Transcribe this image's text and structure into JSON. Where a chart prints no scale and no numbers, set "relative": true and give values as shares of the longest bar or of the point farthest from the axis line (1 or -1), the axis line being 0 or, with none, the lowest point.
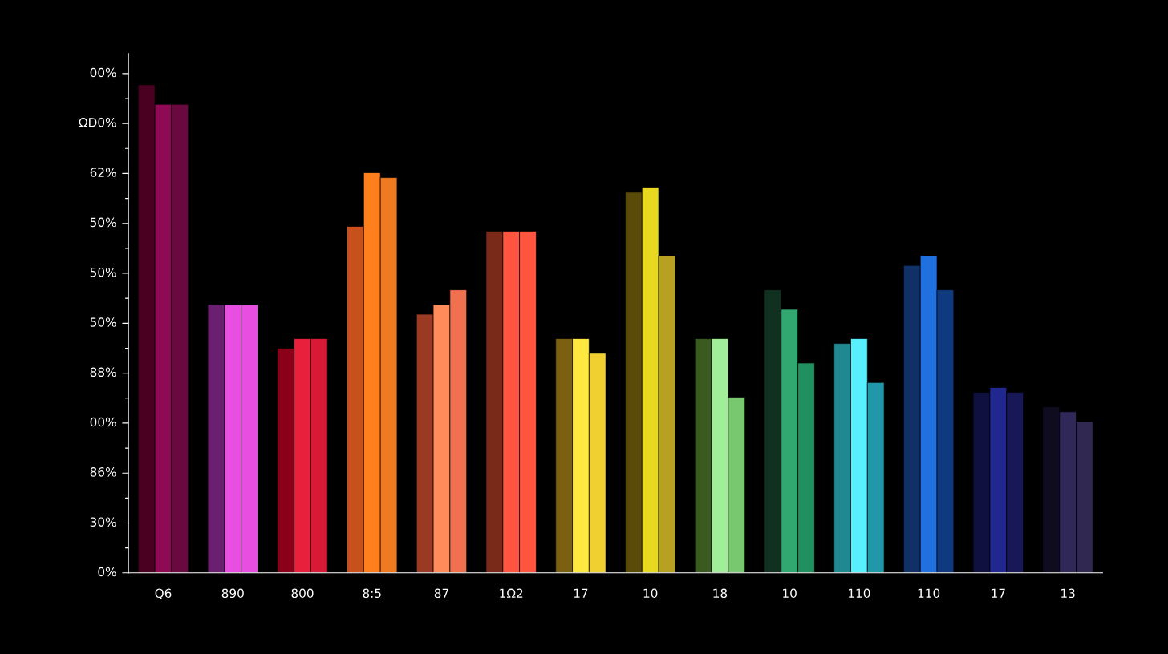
{
  "chart_data": {
    "type": "bar",
    "relative": true,
    "categories": [
      "Q6",
      "890",
      "800",
      "8:5",
      "87",
      "1Ω2",
      "17",
      "10",
      "18",
      "10",
      "110",
      "110",
      "17",
      "13"
    ],
    "series": [
      {
        "values": [
          1,
          0.55,
          0.46,
          0.71,
          0.53,
          0.7,
          0.48,
          0.78,
          0.48,
          0.58,
          0.47,
          0.63,
          0.37,
          0.34
        ],
        "colors": [
          "#4a0020",
          "#6a1f70",
          "#8a0018",
          "#c8501a",
          "#9a3a22",
          "#7a2a18",
          "#7a6010",
          "#5a4c08",
          "#3a5a20",
          "#103020",
          "#208890",
          "#103068",
          "#101040",
          "#100c20"
        ]
      },
      {
        "values": [
          0.96,
          0.55,
          0.48,
          0.82,
          0.55,
          0.7,
          0.48,
          0.79,
          0.48,
          0.54,
          0.48,
          0.65,
          0.38,
          0.33
        ],
        "colors": [
          "#8e0a55",
          "#e84fe0",
          "#e8203c",
          "#ff7f1f",
          "#ff8a5a",
          "#ff5540",
          "#ffe840",
          "#e8d820",
          "#a0ee98",
          "#30a870",
          "#58f0ff",
          "#2070e0",
          "#202890",
          "#302858"
        ]
      },
      {
        "values": [
          0.96,
          0.55,
          0.48,
          0.81,
          0.58,
          0.7,
          0.45,
          0.65,
          0.36,
          0.43,
          0.39,
          0.58,
          0.37,
          0.31
        ],
        "colors": [
          "#6a0840",
          "#e84fe0",
          "#d81a36",
          "#f07a20",
          "#f07050",
          "#ff5540",
          "#f0d030",
          "#b8a020",
          "#78c870",
          "#209060",
          "#2098a8",
          "#103a80",
          "#181858",
          "#302850"
        ]
      }
    ],
    "annotations": [
      "0%",
      "30%",
      "86%",
      "00%",
      "88%",
      "50%",
      "50%",
      "50%",
      "62%",
      "ΩD0%",
      "00%"
    ],
    "grid": false
  }
}
